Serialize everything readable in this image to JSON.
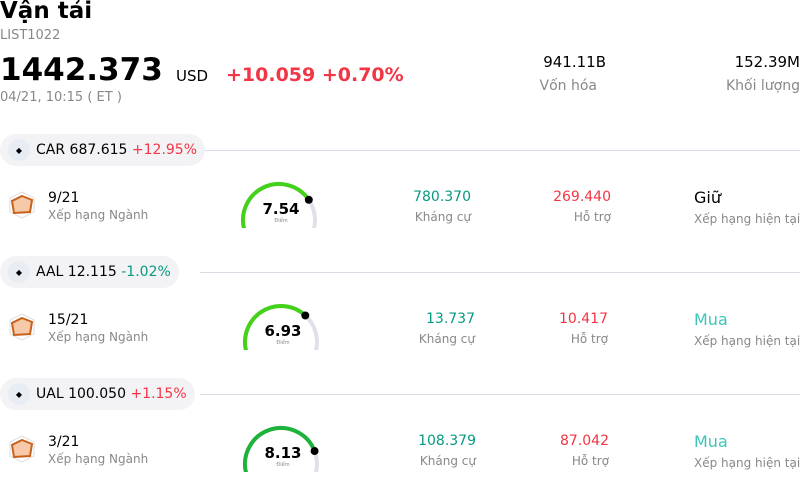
{
  "header": {
    "title": "Vận tải",
    "code": "LIST1022",
    "price": "1442.373",
    "currency": "USD",
    "change": "+10.059 +0.70%",
    "time": "04/21, 10:15  ( ET )",
    "market_cap": "941.11B",
    "market_cap_label": "Vốn hóa",
    "volume": "152.39M",
    "volume_label": "Khối lượng"
  },
  "colors": {
    "up": "#f23645",
    "down": "#089981",
    "buy": "#3cc6b8"
  },
  "stocks": [
    {
      "ticker": "CAR",
      "price": "687.615",
      "change": "+12.95%",
      "dir": "up",
      "rank": "9/21",
      "rank_label": "Xếp hạng Ngành",
      "score": "7.54",
      "score_label": "Điểm",
      "gauge_color": "#44d11a",
      "resistance": "780.370",
      "resistance_label": "Kháng cự",
      "support": "269.440",
      "support_label": "Hỗ trợ",
      "rating": "Giữ",
      "rating_label": "Xếp hạng hiện tại",
      "rating_color": "#000000"
    },
    {
      "ticker": "AAL",
      "price": "12.115",
      "change": "-1.02%",
      "dir": "down",
      "rank": "15/21",
      "rank_label": "Xếp hạng Ngành",
      "score": "6.93",
      "score_label": "Điểm",
      "gauge_color": "#44d11a",
      "resistance": "13.737",
      "resistance_label": "Kháng cự",
      "support": "10.417",
      "support_label": "Hỗ trợ",
      "rating": "Mua",
      "rating_label": "Xếp hạng hiện tại",
      "rating_color": "#3cc6b8"
    },
    {
      "ticker": "UAL",
      "price": "100.050",
      "change": "+1.15%",
      "dir": "up",
      "rank": "3/21",
      "rank_label": "Xếp hạng Ngành",
      "score": "8.13",
      "score_label": "Điểm",
      "gauge_color": "#1db33b",
      "resistance": "108.379",
      "resistance_label": "Kháng cự",
      "support": "87.042",
      "support_label": "Hỗ trợ",
      "rating": "Mua",
      "rating_label": "Xếp hạng hiện tại",
      "rating_color": "#3cc6b8"
    }
  ]
}
